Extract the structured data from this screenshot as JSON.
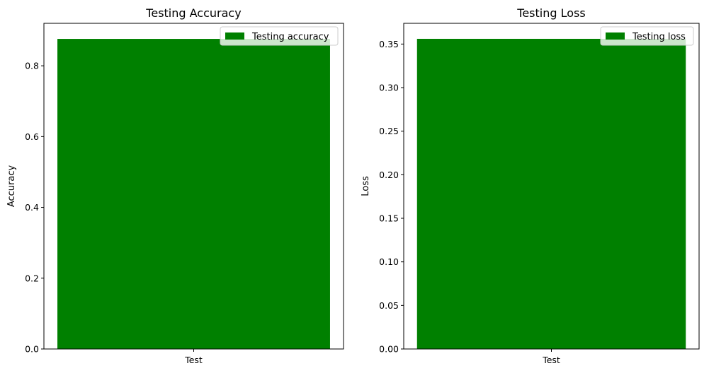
{
  "chart_data": [
    {
      "type": "bar",
      "title": "Testing Accuracy",
      "xlabel": "",
      "ylabel": "Accuracy",
      "categories": [
        "Test"
      ],
      "series": [
        {
          "name": "Testing accuracy",
          "values": [
            0.876
          ]
        }
      ],
      "ylim": [
        0,
        0.92
      ],
      "yticks": [
        0.0,
        0.2,
        0.4,
        0.6,
        0.8
      ],
      "ytick_labels": [
        "0.0",
        "0.2",
        "0.4",
        "0.6",
        "0.8"
      ],
      "grid": false,
      "legend": "top-right",
      "bar_color": "#008000"
    },
    {
      "type": "bar",
      "title": "Testing Loss",
      "xlabel": "",
      "ylabel": "Loss",
      "categories": [
        "Test"
      ],
      "series": [
        {
          "name": "Testing loss",
          "values": [
            0.356
          ]
        }
      ],
      "ylim": [
        0,
        0.3738
      ],
      "yticks": [
        0.0,
        0.05,
        0.1,
        0.15,
        0.2,
        0.25,
        0.3,
        0.35
      ],
      "ytick_labels": [
        "0.00",
        "0.05",
        "0.10",
        "0.15",
        "0.20",
        "0.25",
        "0.30",
        "0.35"
      ],
      "grid": false,
      "legend": "top-right",
      "bar_color": "#008000"
    }
  ]
}
